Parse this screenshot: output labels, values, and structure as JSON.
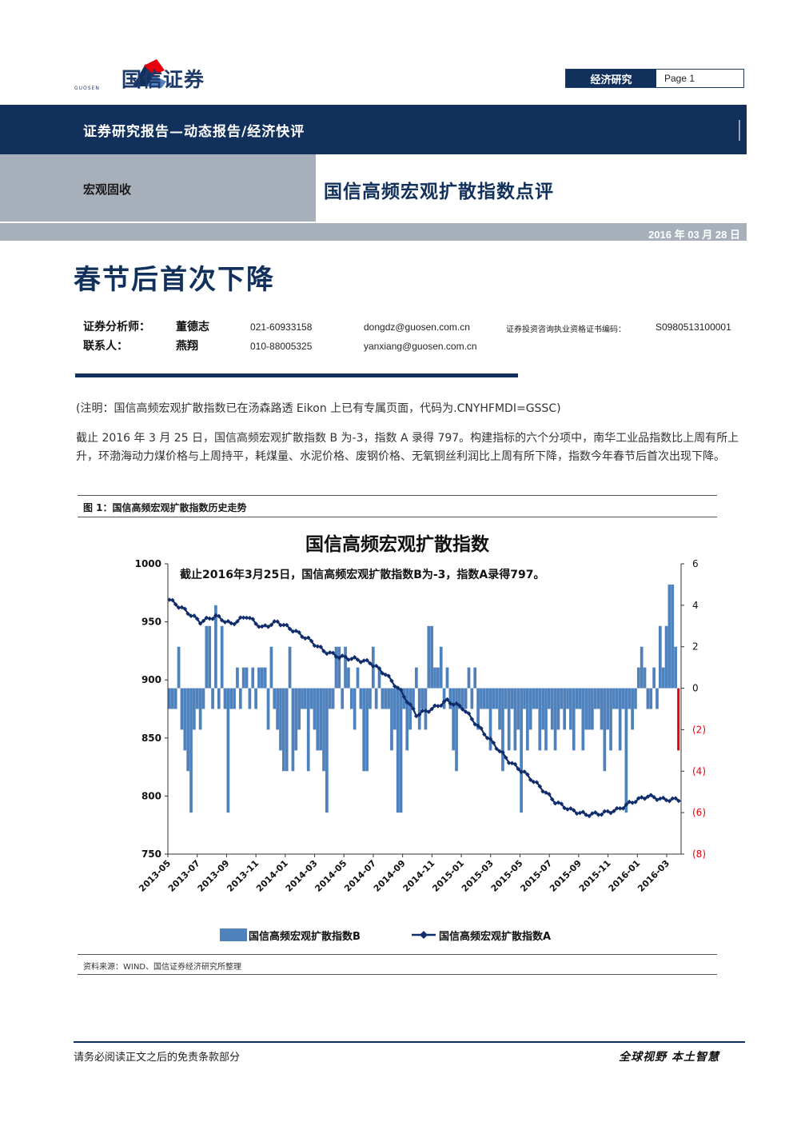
{
  "header": {
    "logo_text": "国信证券",
    "logo_sub": "GUOSEN",
    "section": "经济研究",
    "page_label": "Page 1"
  },
  "banner": {
    "report_type": "证券研究报告—动态报告/经济快评",
    "category": "宏观固收",
    "title": "国信高频宏观扩散指数点评",
    "date": "2016 年 03 月 28 日"
  },
  "main_title": "春节后首次下降",
  "analysts": [
    {
      "role": "证券分析师：",
      "name": "董德志",
      "phone": "021-60933158",
      "email": "dongdz@guosen.com.cn",
      "cert_label": "证券投资咨询执业资格证书编码：",
      "cert": "S0980513100001"
    },
    {
      "role": "联系人：",
      "name": "燕翔",
      "phone": "010-88005325",
      "email": "yanxiang@guosen.com.cn",
      "cert_label": "",
      "cert": ""
    }
  ],
  "note": "(注明：国信高频宏观扩散指数已在汤森路透 Eikon 上已有专属页面，代码为.CNYHFMDI=GSSC)",
  "summary": "截止 2016 年 3 月 25 日，国信高频宏观扩散指数 B 为-3，指数 A 录得 797。构建指标的六个分项中，南华工业品指数比上周有所上升，环渤海动力煤价格与上周持平，耗煤量、水泥价格、废钢价格、无氧铜丝利润比上周有所下降，指数今年春节后首次出现下降。",
  "figure": {
    "caption": "图 1：国信高频宏观扩散指数历史走势",
    "source": "资料来源：WIND、国信证券经济研究所整理"
  },
  "chart_data": {
    "type": "bar+line",
    "title": "国信高频宏观扩散指数",
    "annotation": "截止2016年3月25日，国信高频宏观扩散指数B为-3，指数A录得797。",
    "x_tick_labels": [
      "2013-05",
      "2013-07",
      "2013-09",
      "2013-11",
      "2014-01",
      "2014-03",
      "2014-05",
      "2014-07",
      "2014-09",
      "2014-11",
      "2015-01",
      "2015-03",
      "2015-05",
      "2015-07",
      "2015-09",
      "2015-11",
      "2016-01",
      "2016-03"
    ],
    "left_axis": {
      "ylim": [
        750,
        1000
      ],
      "ticks": [
        "750",
        "800",
        "850",
        "900",
        "950",
        "1000"
      ]
    },
    "right_axis": {
      "ylim": [
        -8,
        6
      ],
      "ticks": [
        "(8)",
        "(6)",
        "(4)",
        "(2)",
        "0",
        "2",
        "4",
        "6"
      ]
    },
    "colors": {
      "bar": "#4f81bd",
      "last_bar": "#e8000b",
      "line": "#0f2d6b",
      "negative_tick": "#e8000b"
    },
    "legend": [
      "国信高频宏观扩散指数B",
      "国信高频宏观扩散指数A"
    ],
    "series": [
      {
        "name": "国信高频宏观扩散指数B",
        "kind": "bar",
        "axis": "right",
        "values": [
          -1,
          -1,
          -1,
          2,
          -2,
          -3,
          -4,
          -6,
          -2,
          -1,
          -2,
          -1,
          3,
          3,
          -1,
          4,
          -1,
          3,
          -1,
          -6,
          -1,
          -1,
          1,
          -1,
          1,
          1,
          -1,
          1,
          -1,
          1,
          1,
          1,
          -2,
          2,
          -1,
          -2,
          -3,
          -4,
          -4,
          2,
          -4,
          -3,
          -2,
          -1,
          -1,
          -4,
          -1,
          -2,
          -3,
          -3,
          -4,
          -6,
          -1,
          -1,
          2,
          2,
          -1,
          2,
          1,
          -1,
          -2,
          1,
          -1,
          -4,
          -4,
          -1,
          2,
          -1,
          1,
          -1,
          -1,
          -1,
          -3,
          -2,
          -6,
          -6,
          -1,
          -3,
          -2,
          -1,
          1,
          -2,
          -1,
          -2,
          3,
          3,
          1,
          1,
          2,
          -1,
          1,
          -1,
          -3,
          -4,
          -1,
          -1,
          -1,
          1,
          -1,
          1,
          -2,
          -1,
          -1,
          -1,
          -3,
          -1,
          -1,
          -2,
          -4,
          -1,
          -3,
          -1,
          -3,
          -2,
          -6,
          -1,
          -3,
          -2,
          -1,
          -1,
          -3,
          -2,
          -3,
          -1,
          -2,
          -3,
          -2,
          -1,
          -2,
          -1,
          -2,
          -3,
          -1,
          -1,
          -3,
          -2,
          -2,
          -2,
          -1,
          -1,
          -2,
          -4,
          -2,
          -3,
          -1,
          -1,
          -3,
          -1,
          -6,
          -1,
          -2,
          -1,
          1,
          2,
          1,
          -1,
          -1,
          1,
          -1,
          3,
          1,
          3,
          5,
          5,
          2,
          -3
        ]
      },
      {
        "name": "国信高频宏观扩散指数A",
        "kind": "line",
        "axis": "left",
        "anchors_x_index": [
          0,
          5,
          10,
          15,
          20,
          25,
          30,
          35,
          40,
          45,
          50,
          55,
          60,
          65,
          70,
          75,
          80,
          85,
          90,
          95,
          100,
          105,
          110,
          115,
          120,
          125,
          130,
          135,
          140,
          145,
          150,
          155,
          160,
          163,
          164
        ],
        "anchors_y": [
          969,
          960,
          950,
          955,
          948,
          955,
          945,
          950,
          943,
          935,
          925,
          920,
          918,
          915,
          905,
          890,
          870,
          875,
          882,
          876,
          860,
          845,
          830,
          820,
          808,
          795,
          788,
          784,
          785,
          788,
          795,
          800,
          797,
          797,
          797
        ]
      }
    ]
  },
  "footer": {
    "disclaimer": "请务必阅读正文之后的免责条款部分",
    "slogan": "全球视野  本土智慧"
  }
}
